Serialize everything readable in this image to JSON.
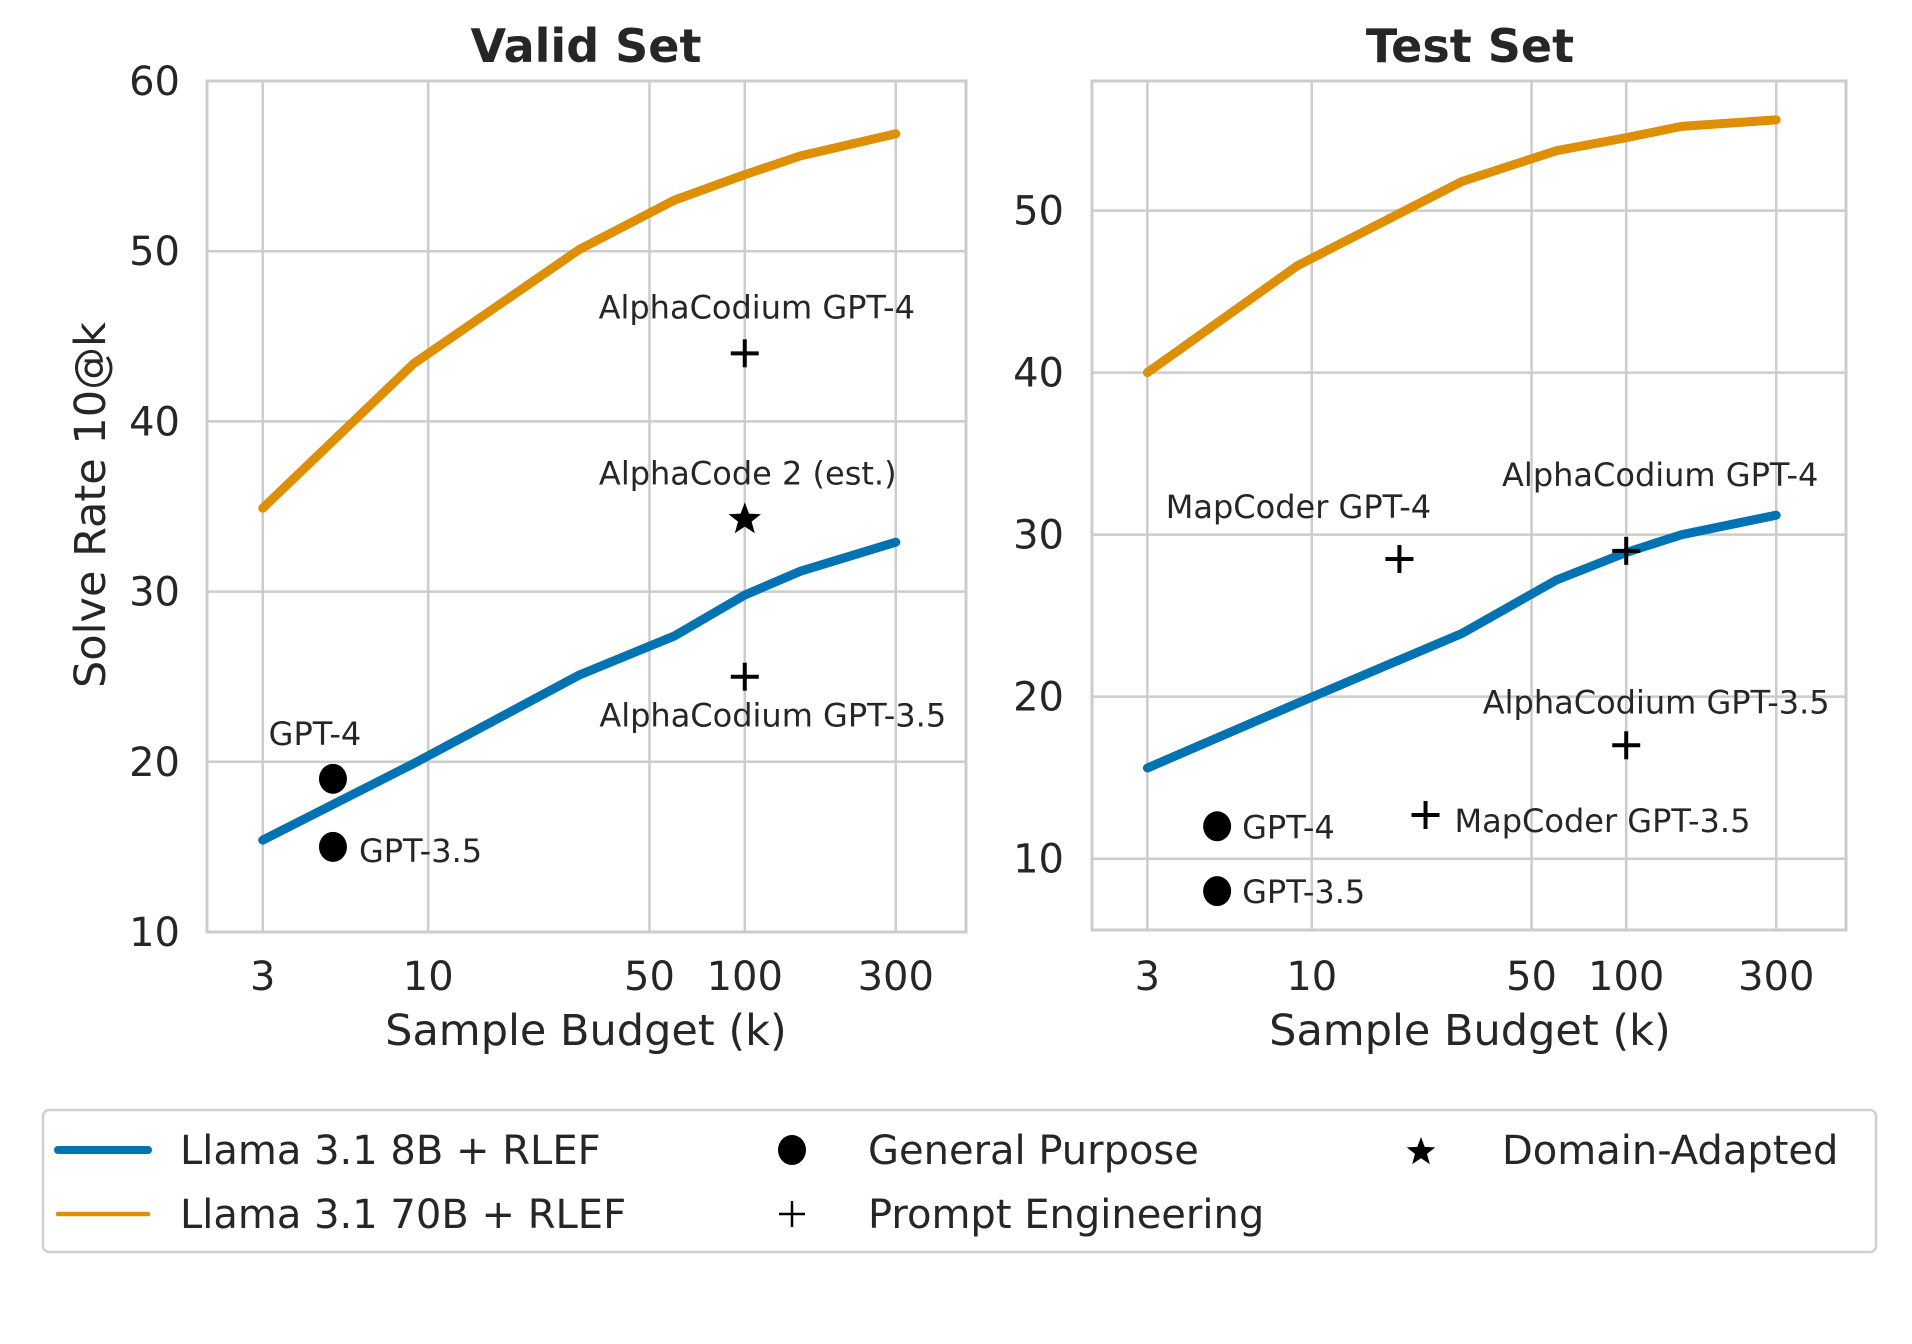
{
  "chart_data": [
    {
      "type": "line",
      "title": "Valid Set",
      "xlabel": "Sample Budget (k)",
      "ylabel": "Solve Rate 10@k",
      "xscale": "log",
      "xlim": [
        2,
        500
      ],
      "ylim": [
        10,
        60
      ],
      "xticks": [
        3,
        10,
        50,
        100,
        300
      ],
      "xtick_labels": [
        "3",
        "10",
        "50",
        "100",
        "300"
      ],
      "yticks": [
        10,
        20,
        30,
        40,
        50,
        60
      ],
      "ytick_labels": [
        "10",
        "20",
        "30",
        "40",
        "50",
        "60"
      ],
      "grid": true,
      "series": [
        {
          "name": "Llama 3.1 8B + RLEF",
          "color": "#0173b2",
          "x": [
            3,
            9,
            30,
            60,
            100,
            150,
            300
          ],
          "y": [
            15.4,
            19.9,
            25.1,
            27.4,
            29.8,
            31.2,
            32.9
          ]
        },
        {
          "name": "Llama 3.1 70B + RLEF",
          "color": "#de8f05",
          "x": [
            3,
            9,
            30,
            60,
            100,
            150,
            300
          ],
          "y": [
            34.9,
            43.4,
            50.1,
            53.0,
            54.5,
            55.6,
            56.9
          ]
        }
      ],
      "points": [
        {
          "label": "GPT-4",
          "category": "General Purpose",
          "marker": "circle",
          "x": 5,
          "y": 19
        },
        {
          "label": "GPT-3.5",
          "category": "General Purpose",
          "marker": "circle",
          "x": 5,
          "y": 15
        },
        {
          "label": "AlphaCodium GPT-4",
          "category": "Prompt Engineering",
          "marker": "plus",
          "x": 100,
          "y": 44
        },
        {
          "label": "AlphaCode 2 (est.)",
          "category": "Domain-Adapted",
          "marker": "star",
          "x": 100,
          "y": 34.3
        },
        {
          "label": "AlphaCodium GPT-3.5",
          "category": "Prompt Engineering",
          "marker": "plus",
          "x": 100,
          "y": 25
        }
      ]
    },
    {
      "type": "line",
      "title": "Test Set",
      "xlabel": "Sample Budget (k)",
      "ylabel": "",
      "xscale": "log",
      "xlim": [
        2,
        500
      ],
      "ylim": [
        5.6,
        58
      ],
      "xticks": [
        3,
        10,
        50,
        100,
        300
      ],
      "xtick_labels": [
        "3",
        "10",
        "50",
        "100",
        "300"
      ],
      "yticks": [
        10,
        20,
        30,
        40,
        50
      ],
      "ytick_labels": [
        "10",
        "20",
        "30",
        "40",
        "50"
      ],
      "grid": true,
      "series": [
        {
          "name": "Llama 3.1 8B + RLEF",
          "color": "#0173b2",
          "x": [
            3,
            9,
            30,
            60,
            100,
            150,
            300
          ],
          "y": [
            15.6,
            19.6,
            23.9,
            27.2,
            28.9,
            30.0,
            31.2
          ]
        },
        {
          "name": "Llama 3.1 70B + RLEF",
          "color": "#de8f05",
          "x": [
            3,
            9,
            30,
            60,
            100,
            150,
            300
          ],
          "y": [
            40.0,
            46.6,
            51.8,
            53.7,
            54.5,
            55.2,
            55.6
          ]
        }
      ],
      "points": [
        {
          "label": "GPT-4",
          "category": "General Purpose",
          "marker": "circle",
          "x": 5,
          "y": 12
        },
        {
          "label": "GPT-3.5",
          "category": "General Purpose",
          "marker": "circle",
          "x": 5,
          "y": 8
        },
        {
          "label": "MapCoder GPT-4",
          "category": "Prompt Engineering",
          "marker": "plus",
          "x": 19,
          "y": 28.5
        },
        {
          "label": "AlphaCodium GPT-4",
          "category": "Prompt Engineering",
          "marker": "plus",
          "x": 100,
          "y": 29
        },
        {
          "label": "AlphaCodium GPT-3.5",
          "category": "Prompt Engineering",
          "marker": "plus",
          "x": 100,
          "y": 17
        },
        {
          "label": "MapCoder GPT-3.5",
          "category": "Prompt Engineering",
          "marker": "plus",
          "x": 23,
          "y": 12.7
        }
      ]
    }
  ],
  "legend": {
    "placement": "bottom",
    "entries": [
      {
        "label": "Llama 3.1 8B + RLEF",
        "kind": "line",
        "color": "#0173b2"
      },
      {
        "label": "Llama 3.1 70B + RLEF",
        "kind": "line",
        "color": "#de8f05"
      },
      {
        "label": "General Purpose",
        "kind": "marker",
        "marker": "circle"
      },
      {
        "label": "Prompt Engineering",
        "kind": "marker",
        "marker": "plus"
      },
      {
        "label": "Domain-Adapted",
        "kind": "marker",
        "marker": "star"
      }
    ]
  }
}
